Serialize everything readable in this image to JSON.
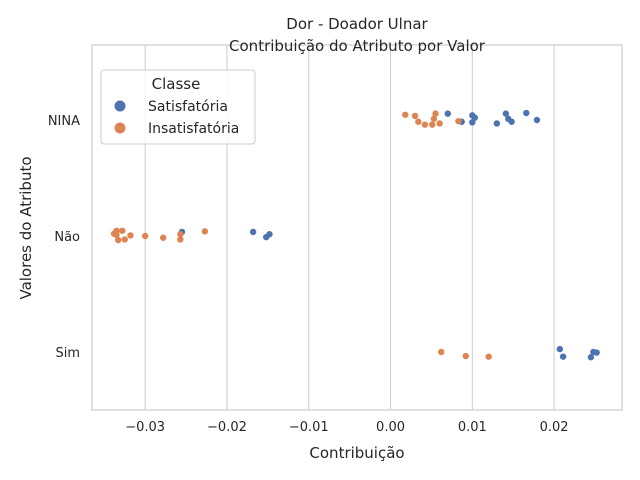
{
  "chart_data": {
    "type": "scatter",
    "title": "Dor - Doador Ulnar",
    "subtitle": "Contribuição do Atributo por Valor",
    "xlabel": "Contribuição",
    "ylabel": "Valores do Atributo",
    "xlim": [
      -0.0365,
      0.0283
    ],
    "x_ticks": [
      -0.03,
      -0.02,
      -0.01,
      0.0,
      0.01,
      0.02
    ],
    "x_tick_labels": [
      "−0.03",
      "−0.02",
      "−0.01",
      "0.00",
      "0.01",
      "0.02"
    ],
    "categories": [
      "NINA",
      "Não",
      "Sim"
    ],
    "grid": true,
    "legend_position": "top-left",
    "legend_title": "Classe",
    "series": [
      {
        "name": "Satisfatória",
        "color": "#4c72b0",
        "points": [
          {
            "category": "NINA",
            "x": 0.007,
            "jitter": -0.11
          },
          {
            "category": "NINA",
            "x": 0.01,
            "jitter": -0.08
          },
          {
            "category": "NINA",
            "x": 0.0103,
            "jitter": -0.04
          },
          {
            "category": "NINA",
            "x": 0.0087,
            "jitter": 0.03
          },
          {
            "category": "NINA",
            "x": 0.01,
            "jitter": 0.04
          },
          {
            "category": "NINA",
            "x": 0.013,
            "jitter": 0.06
          },
          {
            "category": "NINA",
            "x": 0.0141,
            "jitter": -0.11
          },
          {
            "category": "NINA",
            "x": 0.0166,
            "jitter": -0.12
          },
          {
            "category": "NINA",
            "x": 0.0144,
            "jitter": -0.02
          },
          {
            "category": "NINA",
            "x": 0.0148,
            "jitter": 0.03
          },
          {
            "category": "NINA",
            "x": 0.0179,
            "jitter": 0.0
          },
          {
            "category": "Não",
            "x": -0.0255,
            "jitter": -0.07
          },
          {
            "category": "Não",
            "x": -0.0168,
            "jitter": -0.07
          },
          {
            "category": "Não",
            "x": -0.0148,
            "jitter": -0.03
          },
          {
            "category": "Não",
            "x": -0.0152,
            "jitter": 0.02
          },
          {
            "category": "Sim",
            "x": 0.0207,
            "jitter": -0.05
          },
          {
            "category": "Sim",
            "x": 0.0248,
            "jitter": 0.0
          },
          {
            "category": "Sim",
            "x": 0.0252,
            "jitter": 0.01
          },
          {
            "category": "Sim",
            "x": 0.0211,
            "jitter": 0.08
          },
          {
            "category": "Sim",
            "x": 0.0245,
            "jitter": 0.09
          }
        ]
      },
      {
        "name": "Insatisfatória",
        "color": "#dd8452",
        "points": [
          {
            "category": "NINA",
            "x": 0.0018,
            "jitter": -0.09
          },
          {
            "category": "NINA",
            "x": 0.003,
            "jitter": -0.07
          },
          {
            "category": "NINA",
            "x": 0.0055,
            "jitter": -0.11
          },
          {
            "category": "NINA",
            "x": 0.0053,
            "jitter": -0.02
          },
          {
            "category": "NINA",
            "x": 0.0034,
            "jitter": 0.03
          },
          {
            "category": "NINA",
            "x": 0.0042,
            "jitter": 0.08
          },
          {
            "category": "NINA",
            "x": 0.0051,
            "jitter": 0.08
          },
          {
            "category": "NINA",
            "x": 0.006,
            "jitter": 0.06
          },
          {
            "category": "NINA",
            "x": 0.0083,
            "jitter": 0.02
          },
          {
            "category": "Não",
            "x": -0.0335,
            "jitter": -0.09
          },
          {
            "category": "Não",
            "x": -0.0328,
            "jitter": -0.09
          },
          {
            "category": "Não",
            "x": -0.0338,
            "jitter": -0.04
          },
          {
            "category": "Não",
            "x": -0.0335,
            "jitter": -0.02
          },
          {
            "category": "Não",
            "x": -0.0318,
            "jitter": -0.01
          },
          {
            "category": "Não",
            "x": -0.03,
            "jitter": 0.0
          },
          {
            "category": "Não",
            "x": -0.0278,
            "jitter": 0.03
          },
          {
            "category": "Não",
            "x": -0.0257,
            "jitter": -0.03
          },
          {
            "category": "Não",
            "x": -0.0227,
            "jitter": -0.08
          },
          {
            "category": "Não",
            "x": -0.0333,
            "jitter": 0.07
          },
          {
            "category": "Não",
            "x": -0.0325,
            "jitter": 0.06
          },
          {
            "category": "Não",
            "x": -0.0257,
            "jitter": 0.06
          },
          {
            "category": "Sim",
            "x": 0.0062,
            "jitter": 0.0
          },
          {
            "category": "Sim",
            "x": 0.0092,
            "jitter": 0.07
          },
          {
            "category": "Sim",
            "x": 0.012,
            "jitter": 0.08
          }
        ]
      }
    ]
  }
}
